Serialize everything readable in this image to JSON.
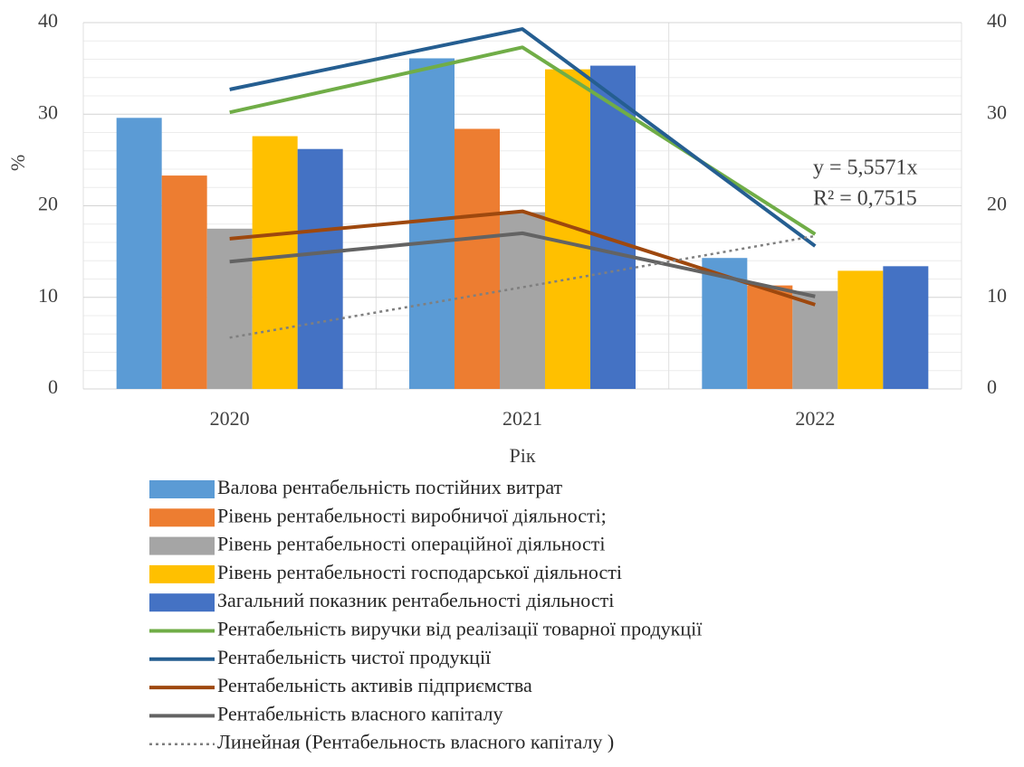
{
  "chart_data": {
    "type": "bar",
    "x_label": "Рік",
    "y_label": "%",
    "categories": [
      "2020",
      "2021",
      "2022"
    ],
    "ylim": [
      0,
      40
    ],
    "yticks": [
      0,
      10,
      20,
      30,
      40
    ],
    "y2lim": [
      0,
      40
    ],
    "y2ticks": [
      0,
      10,
      20,
      30,
      40
    ],
    "grid": true,
    "legend": "bottom",
    "series": [
      {
        "name": "Валова рентабельність  постійних витрат",
        "type": "bar",
        "color": "#5b9bd5",
        "values": [
          29.6,
          36.1,
          14.3
        ]
      },
      {
        "name": "Рівень рентабельності виробничої діяльності;",
        "type": "bar",
        "color": "#ed7d31",
        "values": [
          23.3,
          28.4,
          11.3
        ]
      },
      {
        "name": "Рівень рентабельності  операційної діяльності",
        "type": "bar",
        "color": "#a5a5a5",
        "values": [
          17.5,
          19.3,
          10.7
        ]
      },
      {
        "name": "Рівень рентабельності  господарської діяльності",
        "type": "bar",
        "color": "#ffc000",
        "values": [
          27.6,
          34.9,
          12.9
        ]
      },
      {
        "name": "Загальний показник рентабельності  діяльності",
        "type": "bar",
        "color": "#4472c4",
        "values": [
          26.2,
          35.3,
          13.4
        ]
      },
      {
        "name": "Рентабельність виручки від  реалізації  товарної продукції",
        "type": "line",
        "axis": "y2",
        "color": "#70ad47",
        "values": [
          30.2,
          37.3,
          16.9
        ]
      },
      {
        "name": "Рентабельність чистої продукції",
        "type": "line",
        "axis": "y2",
        "color": "#255e91",
        "values": [
          32.7,
          39.3,
          15.6
        ]
      },
      {
        "name": "Рентабельність активів  підприємства",
        "type": "line",
        "axis": "y2",
        "color": "#9e480e",
        "values": [
          16.4,
          19.4,
          9.2
        ]
      },
      {
        "name": "Рентабельність власного капіталу",
        "type": "line",
        "axis": "y2",
        "color": "#636363",
        "values": [
          13.9,
          17.0,
          10.1
        ]
      },
      {
        "name": "Линейная (Рентабельность власного капіталу )",
        "type": "line",
        "axis": "y2",
        "dashed": true,
        "color": "#7f7f7f",
        "values": [
          5.6,
          11.1,
          16.7
        ]
      }
    ],
    "annotations": [
      "y = 5,5571x",
      "R² = 0,7515"
    ]
  }
}
